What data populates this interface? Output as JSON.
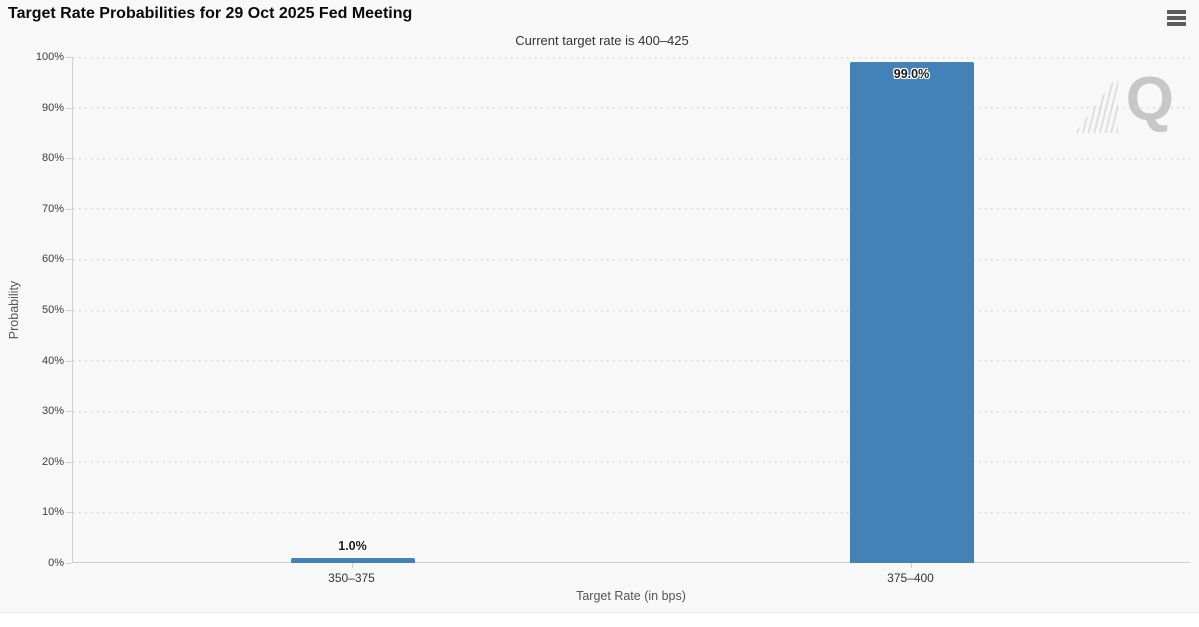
{
  "header": {
    "title": "Target Rate Probabilities for 29 Oct 2025 Fed Meeting",
    "menu_tooltip": "Chart context menu"
  },
  "chart_data": {
    "type": "bar",
    "title": "Target Rate Probabilities for 29 Oct 2025 Fed Meeting",
    "subtitle": "Current target rate is 400–425",
    "categories": [
      "350–375",
      "375–400"
    ],
    "values": [
      1.0,
      99.0
    ],
    "value_labels": [
      "1.0%",
      "99.0%"
    ],
    "xlabel": "Target Rate (in bps)",
    "ylabel": "Probability",
    "ylim": [
      0,
      100
    ],
    "ytick_step": 10,
    "ytick_labels": [
      "0%",
      "10%",
      "20%",
      "30%",
      "40%",
      "50%",
      "60%",
      "70%",
      "80%",
      "90%",
      "100%"
    ],
    "grid": "horizontal-dotted",
    "legend": "none",
    "bar_color": "#4381b6",
    "watermark_letter": "Q"
  }
}
